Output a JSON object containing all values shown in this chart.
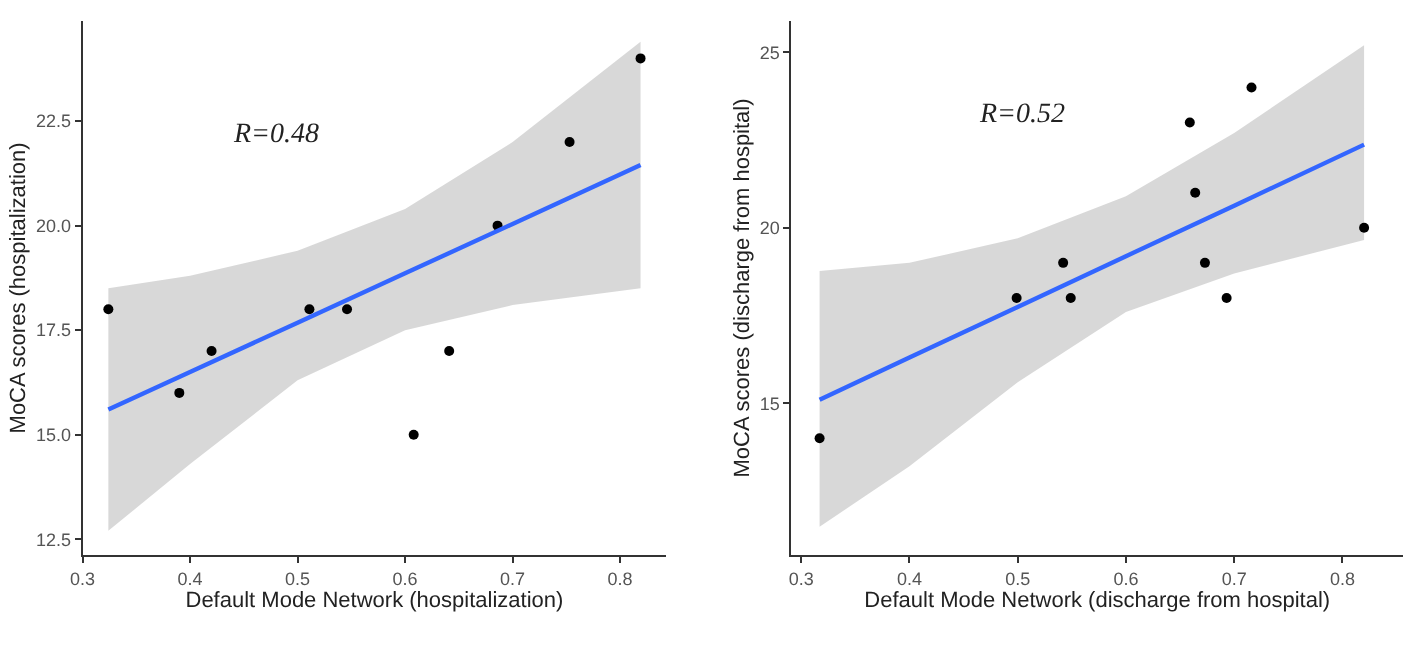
{
  "chart_data": [
    {
      "type": "scatter",
      "xlabel": "Default Mode Network (hospitalization)",
      "ylabel": "MoCA scores (hospitalization)",
      "annotations": [
        "R=0.48"
      ],
      "xlim": [
        0.3,
        0.843
      ],
      "ylim": [
        12.12,
        24.9
      ],
      "xticks": [
        0.3,
        0.4,
        0.5,
        0.6,
        0.7,
        0.8
      ],
      "yticks": [
        {
          "value": 12.5,
          "label": "12.5"
        },
        {
          "value": 15,
          "label": "15.0"
        },
        {
          "value": 17.5,
          "label": "17.5"
        },
        {
          "value": 20,
          "label": "20.0"
        },
        {
          "value": 22.5,
          "label": "22.5"
        }
      ],
      "grid": false,
      "series": [
        {
          "marker": "circle",
          "color": "#000000",
          "x": [
            0.324,
            0.39,
            0.42,
            0.511,
            0.546,
            0.608,
            0.641,
            0.686,
            0.753,
            0.819
          ],
          "values": [
            18,
            16,
            17,
            18,
            18,
            15,
            17,
            20,
            22,
            24
          ]
        },
        {
          "type": "line",
          "color": "#3366ff",
          "x": [
            0.324,
            0.4,
            0.5,
            0.6,
            0.7,
            0.819
          ],
          "values": [
            15.6,
            16.5,
            17.68,
            18.86,
            20.04,
            21.45
          ],
          "lower": [
            12.7,
            14.3,
            16.3,
            17.5,
            18.1,
            18.5
          ],
          "upper": [
            18.5,
            18.8,
            19.4,
            20.4,
            22.0,
            24.4
          ]
        }
      ]
    },
    {
      "type": "scatter",
      "xlabel": "Default Mode Network (discharge from hospital)",
      "ylabel": "MoCA scores (discharge from hospital)",
      "annotations": [
        "R=0.52"
      ],
      "xlim": [
        0.291,
        0.856
      ],
      "ylim": [
        10.67,
        25.9
      ],
      "xticks": [
        0.3,
        0.4,
        0.5,
        0.6,
        0.7,
        0.8
      ],
      "yticks": [
        15,
        20,
        25
      ],
      "grid": false,
      "series": [
        {
          "marker": "circle",
          "color": "#000000",
          "x": [
            0.317,
            0.499,
            0.542,
            0.549,
            0.659,
            0.664,
            0.673,
            0.693,
            0.716,
            0.82
          ],
          "values": [
            14,
            18,
            19,
            18,
            23,
            21,
            19,
            18,
            24,
            20
          ]
        },
        {
          "type": "line",
          "color": "#3366ff",
          "x": [
            0.317,
            0.4,
            0.5,
            0.6,
            0.7,
            0.82
          ],
          "values": [
            15.1,
            16.3,
            17.74,
            19.19,
            20.63,
            22.37
          ],
          "lower": [
            11.48,
            13.2,
            15.6,
            17.6,
            18.7,
            19.65
          ],
          "upper": [
            18.77,
            19.0,
            19.7,
            20.9,
            22.7,
            25.2
          ]
        }
      ]
    }
  ]
}
